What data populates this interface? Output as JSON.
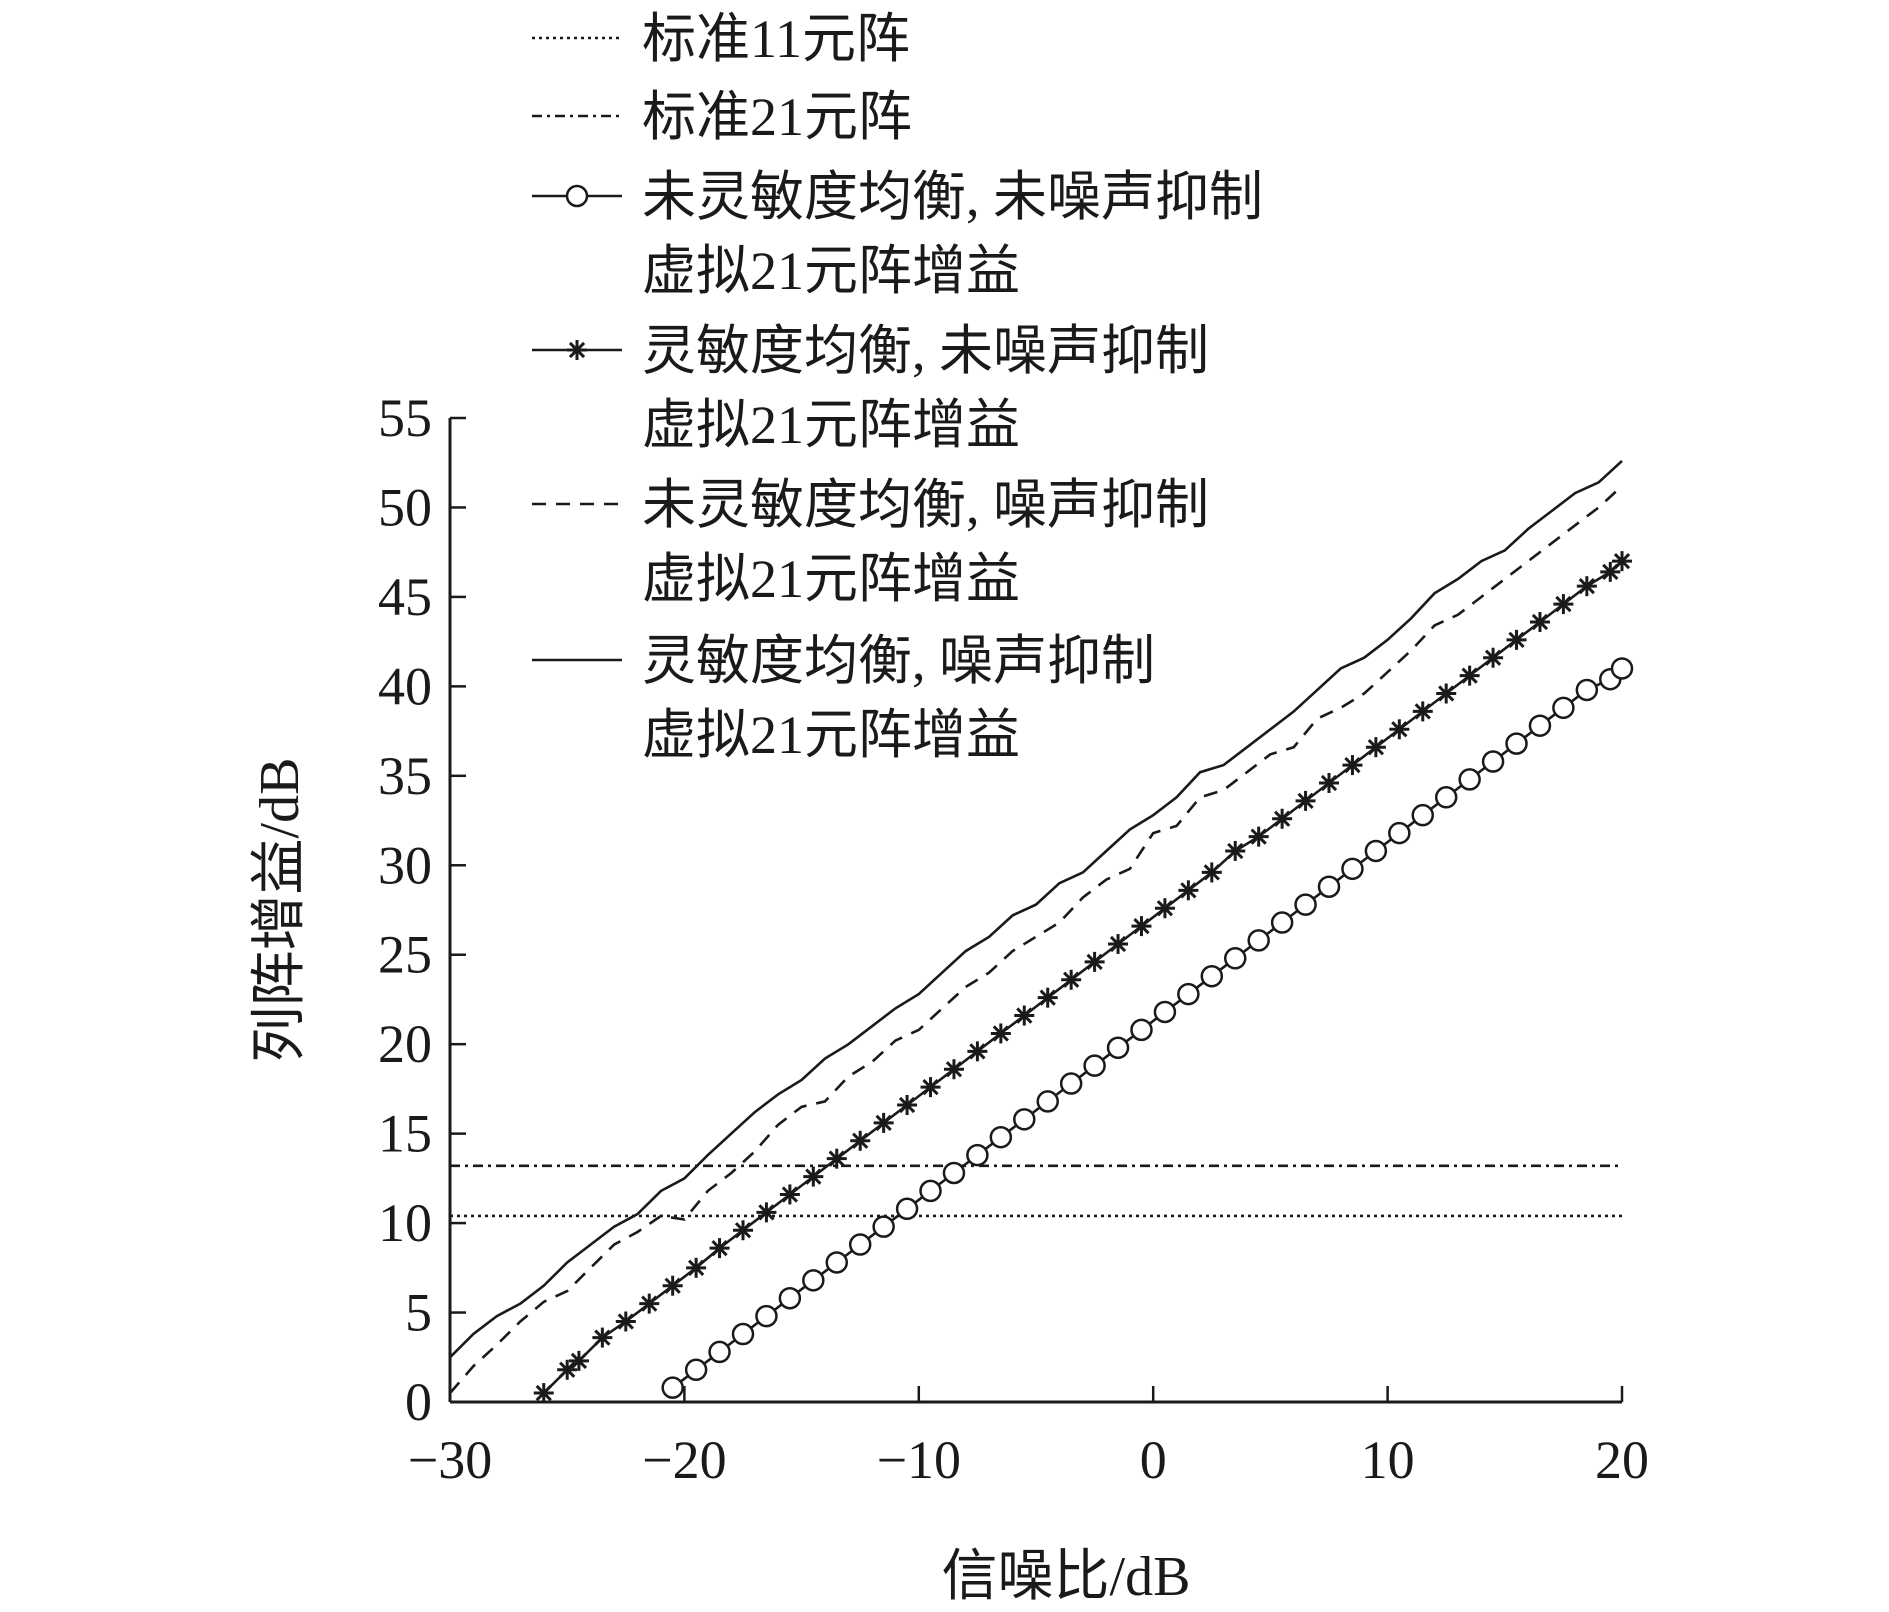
{
  "chart_data": {
    "type": "line",
    "title": "",
    "xlabel": "信噪比/dB",
    "ylabel": "列阵增益/dB",
    "xlim": [
      -30,
      20
    ],
    "ylim": [
      0,
      55
    ],
    "xticks": [
      -30,
      -20,
      -10,
      0,
      10,
      20
    ],
    "yticks": [
      0,
      5,
      10,
      15,
      20,
      25,
      30,
      35,
      40,
      45,
      50,
      55
    ],
    "xtick_labels": [
      "−30",
      "−20",
      "−10",
      "0",
      "10",
      "20"
    ],
    "ytick_labels": [
      "0",
      "5",
      "10",
      "15",
      "20",
      "25",
      "30",
      "35",
      "40",
      "45",
      "50",
      "55"
    ],
    "grid": false,
    "legend_position": "top-left",
    "series": [
      {
        "name": "标准11元阵",
        "style": "dotted",
        "marker": "none",
        "x": [
          -30,
          20
        ],
        "y": [
          10.4,
          10.4
        ]
      },
      {
        "name": "标准21元阵",
        "style": "dashdot",
        "marker": "none",
        "x": [
          -30,
          20
        ],
        "y": [
          13.2,
          13.2
        ]
      },
      {
        "name": "未灵敏度均衡, 未噪声抑制",
        "name_line2": "虚拟21元阵增益",
        "style": "solid",
        "marker": "circle",
        "x": [
          -20.5,
          -19.5,
          -18.5,
          -17.5,
          -16.5,
          -15.5,
          -14.5,
          -13.5,
          -12.5,
          -11.5,
          -10.5,
          -9.5,
          -8.5,
          -7.5,
          -6.5,
          -5.5,
          -4.5,
          -3.5,
          -2.5,
          -1.5,
          -0.5,
          0.5,
          1.5,
          2.5,
          3.5,
          4.5,
          5.5,
          6.5,
          7.5,
          8.5,
          9.5,
          10.5,
          11.5,
          12.5,
          13.5,
          14.5,
          15.5,
          16.5,
          17.5,
          18.5,
          19.5,
          20
        ],
        "y": [
          0.8,
          1.8,
          2.8,
          3.8,
          4.8,
          5.8,
          6.8,
          7.8,
          8.8,
          9.8,
          10.8,
          11.8,
          12.8,
          13.8,
          14.8,
          15.8,
          16.8,
          17.8,
          18.8,
          19.8,
          20.8,
          21.8,
          22.8,
          23.8,
          24.8,
          25.8,
          26.8,
          27.8,
          28.8,
          29.8,
          30.8,
          31.8,
          32.8,
          33.8,
          34.8,
          35.8,
          36.8,
          37.8,
          38.8,
          39.8,
          40.4,
          41.0
        ]
      },
      {
        "name": "灵敏度均衡, 未噪声抑制",
        "name_line2": "虚拟21元阵增益",
        "style": "solid",
        "marker": "star",
        "x": [
          -26,
          -25,
          -24.5,
          -23.5,
          -22.5,
          -21.5,
          -20.5,
          -19.5,
          -18.5,
          -17.5,
          -16.5,
          -15.5,
          -14.5,
          -13.5,
          -12.5,
          -11.5,
          -10.5,
          -9.5,
          -8.5,
          -7.5,
          -6.5,
          -5.5,
          -4.5,
          -3.5,
          -2.5,
          -1.5,
          -0.5,
          0.5,
          1.5,
          2.5,
          3.5,
          4.5,
          5.5,
          6.5,
          7.5,
          8.5,
          9.5,
          10.5,
          11.5,
          12.5,
          13.5,
          14.5,
          15.5,
          16.5,
          17.5,
          18.5,
          19.5,
          20
        ],
        "y": [
          0.5,
          1.8,
          2.3,
          3.6,
          4.5,
          5.5,
          6.5,
          7.5,
          8.6,
          9.6,
          10.6,
          11.6,
          12.6,
          13.6,
          14.6,
          15.6,
          16.6,
          17.6,
          18.6,
          19.6,
          20.6,
          21.6,
          22.6,
          23.6,
          24.6,
          25.6,
          26.6,
          27.6,
          28.6,
          29.6,
          30.8,
          31.6,
          32.6,
          33.6,
          34.6,
          35.6,
          36.6,
          37.6,
          38.6,
          39.6,
          40.6,
          41.6,
          42.6,
          43.6,
          44.6,
          45.6,
          46.4,
          47.0
        ]
      },
      {
        "name": "未灵敏度均衡, 噪声抑制",
        "name_line2": "虚拟21元阵增益",
        "style": "dashed",
        "marker": "none",
        "x": [
          -30,
          -29,
          -28,
          -27,
          -26,
          -25,
          -24,
          -23,
          -22,
          -21,
          -20,
          -19,
          -18,
          -17,
          -16,
          -15,
          -14,
          -13,
          -12,
          -11,
          -10,
          -9,
          -8,
          -7,
          -6,
          -5,
          -4,
          -3,
          -2,
          -1,
          0,
          1,
          2,
          3,
          4,
          5,
          6,
          7,
          8,
          9,
          10,
          11,
          12,
          13,
          14,
          15,
          16,
          17,
          18,
          19,
          20
        ],
        "y": [
          0.5,
          2.0,
          3.2,
          4.5,
          5.6,
          6.2,
          7.5,
          8.8,
          9.5,
          10.4,
          10.2,
          11.8,
          12.8,
          14.0,
          15.5,
          16.5,
          16.8,
          18.2,
          19.0,
          20.2,
          20.8,
          22.0,
          23.2,
          24.0,
          25.2,
          26.0,
          26.8,
          28.2,
          29.2,
          29.8,
          31.8,
          32.2,
          33.8,
          34.2,
          35.2,
          36.2,
          36.6,
          38.2,
          38.8,
          39.6,
          40.8,
          42.0,
          43.4,
          44.0,
          45.0,
          46.0,
          47.0,
          48.0,
          49.0,
          50.0,
          51.2
        ]
      },
      {
        "name": "灵敏度均衡, 噪声抑制",
        "name_line2": "虚拟21元阵增益",
        "style": "solid",
        "marker": "none",
        "x": [
          -30,
          -29,
          -28,
          -27,
          -26,
          -25,
          -24,
          -23,
          -22,
          -21,
          -20,
          -19,
          -18,
          -17,
          -16,
          -15,
          -14,
          -13,
          -12,
          -11,
          -10,
          -9,
          -8,
          -7,
          -6,
          -5,
          -4,
          -3,
          -2,
          -1,
          0,
          1,
          2,
          3,
          4,
          5,
          6,
          7,
          8,
          9,
          10,
          11,
          12,
          13,
          14,
          15,
          16,
          17,
          18,
          19,
          20
        ],
        "y": [
          2.5,
          3.8,
          4.8,
          5.5,
          6.5,
          7.8,
          8.8,
          9.8,
          10.5,
          11.8,
          12.5,
          13.8,
          15.0,
          16.2,
          17.2,
          18.0,
          19.2,
          20.0,
          21.0,
          22.0,
          22.8,
          24.0,
          25.2,
          26.0,
          27.2,
          27.8,
          29.0,
          29.6,
          30.8,
          32.0,
          32.8,
          33.8,
          35.2,
          35.6,
          36.6,
          37.6,
          38.6,
          39.8,
          41.0,
          41.6,
          42.6,
          43.8,
          45.2,
          46.0,
          47.0,
          47.6,
          48.8,
          49.8,
          50.8,
          51.4,
          52.6
        ]
      }
    ]
  }
}
